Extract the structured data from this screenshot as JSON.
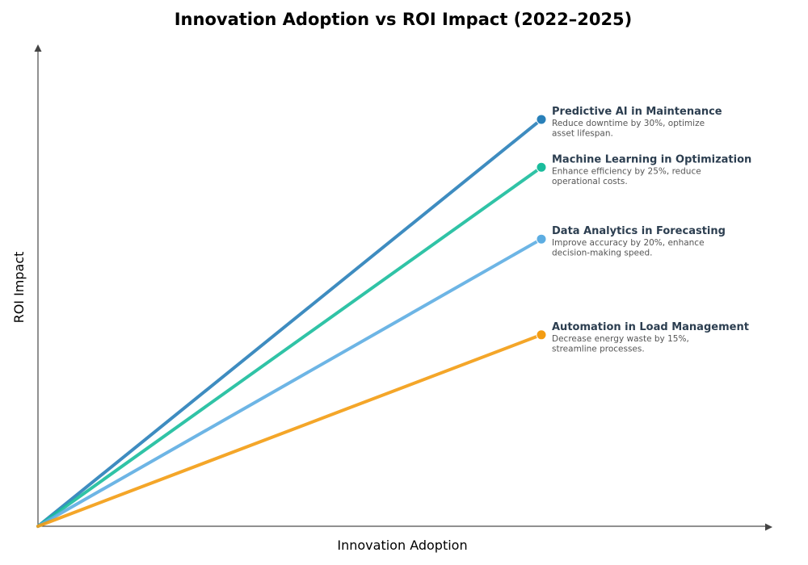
{
  "chart_data": {
    "type": "line",
    "title": "Innovation Adoption vs ROI Impact (2022–2025)",
    "xlabel": "Innovation Adoption",
    "ylabel": "ROI Impact",
    "xlim": [
      0,
      1
    ],
    "ylim": [
      0,
      1
    ],
    "grid": false,
    "series": [
      {
        "name": "Predictive AI in Maintenance",
        "description": [
          "Reduce downtime by 30%, optimize",
          "asset lifespan."
        ],
        "color": "#2980b9",
        "x": [
          0,
          0.7
        ],
        "y": [
          0,
          0.85
        ]
      },
      {
        "name": "Machine Learning in Optimization",
        "description": [
          "Enhance efficiency by 25%, reduce",
          "operational costs."
        ],
        "color": "#1abc9c",
        "x": [
          0,
          0.7
        ],
        "y": [
          0,
          0.75
        ]
      },
      {
        "name": "Data Analytics in Forecasting",
        "description": [
          "Improve accuracy by 20%, enhance",
          "decision-making speed."
        ],
        "color": "#5dade2",
        "x": [
          0,
          0.7
        ],
        "y": [
          0,
          0.6
        ]
      },
      {
        "name": "Automation in Load Management",
        "description": [
          "Decrease energy waste by 15%,",
          "streamline processes."
        ],
        "color": "#f39c12",
        "x": [
          0,
          0.7
        ],
        "y": [
          0,
          0.4
        ]
      }
    ]
  }
}
